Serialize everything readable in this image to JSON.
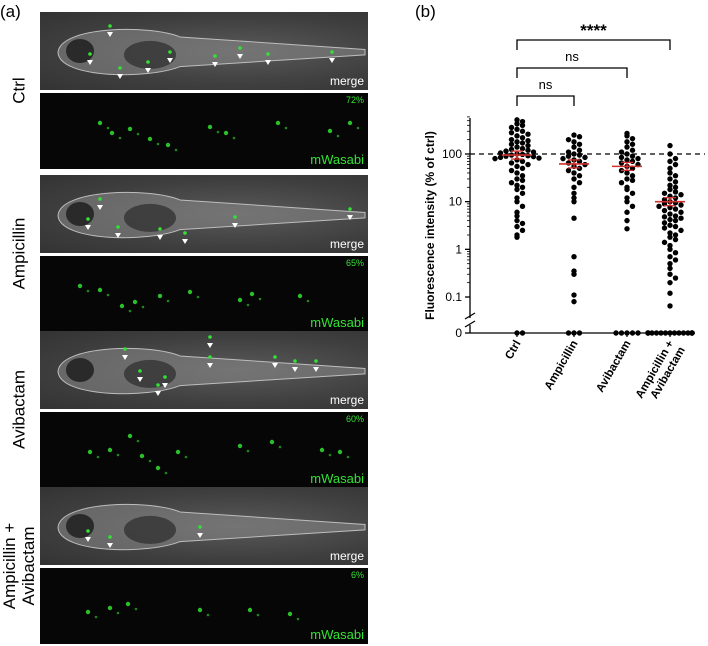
{
  "panel_a": {
    "letter": "(a)",
    "rows": [
      {
        "label": [
          "Ctrl"
        ],
        "merge_tag": "merge",
        "gfp_tag": "mWasabi",
        "percent": "72%"
      },
      {
        "label": [
          "Ampicillin"
        ],
        "merge_tag": "merge",
        "gfp_tag": "mWasabi",
        "percent": "65%"
      },
      {
        "label": [
          "Avibactam"
        ],
        "merge_tag": "merge",
        "gfp_tag": "mWasabi",
        "percent": "60%"
      },
      {
        "label": [
          "Ampicillin +",
          "Avibactam"
        ],
        "merge_tag": "merge",
        "gfp_tag": "mWasabi",
        "percent": "6%"
      }
    ]
  },
  "panel_b": {
    "letter": "(b)",
    "chart_data": {
      "type": "scatter",
      "ylabel": "Fluorescence intensity (% of ctrl)",
      "yscale": "log",
      "yticks": [
        "0",
        "0.1",
        "1",
        "10",
        "100"
      ],
      "categories": [
        "Ctrl",
        "Ampicillin",
        "Avibactam",
        "Ampicillin + Avibactam"
      ],
      "reference_line": {
        "value": 100,
        "style": "dashed"
      },
      "means": [
        95,
        62,
        55,
        10
      ],
      "significance": [
        {
          "from": "Ctrl",
          "to": "Ampicillin + Avibactam",
          "label": "****"
        },
        {
          "from": "Ctrl",
          "to": "Avibactam",
          "label": "ns"
        },
        {
          "from": "Ctrl",
          "to": "Ampicillin",
          "label": "ns"
        }
      ],
      "colors": {
        "points": "#000000",
        "mean_bar": "#d0312d",
        "gfp": "#33e233"
      },
      "series": [
        {
          "values": [
            520,
            480,
            430,
            400,
            360,
            330,
            300,
            280,
            260,
            240,
            220,
            200,
            190,
            180,
            170,
            160,
            150,
            140,
            130,
            125,
            120,
            115,
            110,
            105,
            100,
            98,
            95,
            92,
            90,
            88,
            85,
            82,
            80,
            75,
            70,
            65,
            60,
            55,
            50,
            45,
            40,
            35,
            30,
            28,
            25,
            22,
            20,
            18,
            15,
            12,
            10,
            8,
            6,
            5,
            4,
            3.5,
            3,
            2.5,
            2,
            1.8,
            0,
            0
          ]
        },
        {
          "values": [
            250,
            230,
            200,
            180,
            160,
            140,
            120,
            110,
            100,
            95,
            90,
            85,
            80,
            75,
            70,
            65,
            60,
            55,
            50,
            45,
            40,
            35,
            30,
            25,
            20,
            15,
            12,
            10,
            4.5,
            0.7,
            0.35,
            0.3,
            0.11,
            0.08,
            0,
            0,
            0
          ]
        },
        {
          "values": [
            270,
            240,
            210,
            180,
            160,
            140,
            120,
            110,
            100,
            90,
            85,
            80,
            75,
            70,
            65,
            60,
            55,
            50,
            45,
            40,
            35,
            30,
            28,
            25,
            20,
            18,
            15,
            12,
            10,
            8,
            6,
            4,
            2.7,
            0,
            0,
            0,
            0,
            0
          ]
        },
        {
          "values": [
            150,
            100,
            80,
            70,
            60,
            50,
            40,
            35,
            30,
            26,
            22,
            20,
            18,
            16,
            15,
            14,
            13,
            12,
            11,
            10,
            9.5,
            9,
            8.5,
            8,
            7.5,
            7,
            6.5,
            6,
            5.5,
            5,
            4.8,
            4.5,
            4.2,
            4,
            3.6,
            3.2,
            3,
            2.8,
            2.5,
            2.2,
            2,
            1.8,
            1.6,
            1.4,
            1.2,
            1,
            0.85,
            0.7,
            0.6,
            0.5,
            0.4,
            0.3,
            0.25,
            0.2,
            0.12,
            0.065,
            0,
            0,
            0,
            0,
            0,
            0,
            0,
            0,
            0,
            0,
            0,
            0,
            0,
            0,
            0,
            0
          ]
        }
      ]
    }
  }
}
